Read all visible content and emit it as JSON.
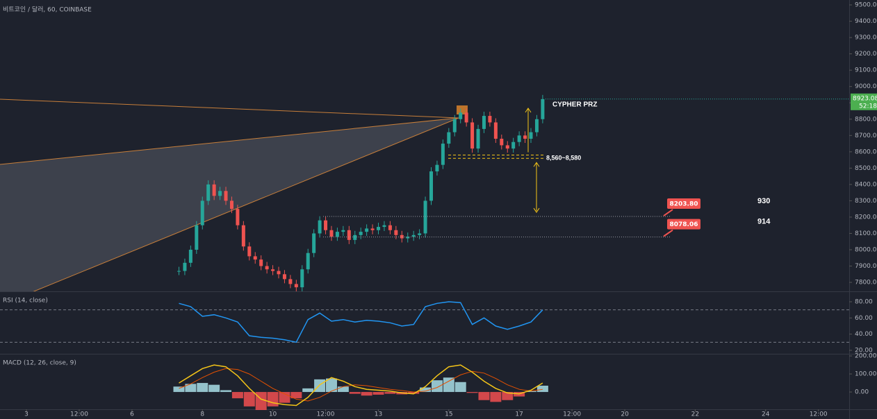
{
  "chart_data": [
    {
      "type": "candlestick",
      "title": "비트코인 / 달러, 60, COINBASE",
      "x": [
        104,
        108,
        112,
        116,
        120,
        124,
        128,
        132,
        136,
        140,
        144,
        148,
        152,
        156,
        160,
        164,
        168,
        172,
        176,
        180,
        184,
        188,
        192,
        196,
        200,
        204,
        208,
        212,
        216,
        220,
        224,
        228,
        232,
        236,
        240,
        244,
        248,
        252,
        256,
        260,
        264,
        268,
        272,
        276,
        280,
        284,
        288,
        292,
        296,
        300,
        304,
        308,
        312,
        316,
        320,
        324,
        328,
        332,
        336,
        340,
        344,
        348,
        352
      ],
      "close": [
        7870,
        7920,
        8000,
        8150,
        8300,
        8400,
        8330,
        8360,
        8300,
        8250,
        8150,
        8020,
        7960,
        7940,
        7900,
        7880,
        7870,
        7850,
        7820,
        7790,
        7770,
        7880,
        7980,
        8100,
        8180,
        8120,
        8080,
        8110,
        8120,
        8060,
        8090,
        8110,
        8130,
        8120,
        8140,
        8150,
        8120,
        8090,
        8070,
        8080,
        8090,
        8100,
        8300,
        8480,
        8520,
        8650,
        8720,
        8800,
        8840,
        8780,
        8620,
        8740,
        8820,
        8780,
        8680,
        8640,
        8620,
        8660,
        8700,
        8680,
        8720,
        8800,
        8923
      ],
      "up_color": "#26a69a",
      "down_color": "#ef5350",
      "xlim": [
        -18,
        561
      ],
      "ylim": [
        7745,
        9530
      ],
      "yticks": [
        {
          "value": 7800,
          "label": "7800.00"
        },
        {
          "value": 7900,
          "label": "7900.00"
        },
        {
          "value": 8000,
          "label": "8000.00"
        },
        {
          "value": 8100,
          "label": "8100.00"
        },
        {
          "value": 8200,
          "label": "8200.00"
        },
        {
          "value": 8300,
          "label": "8300.00"
        },
        {
          "value": 8400,
          "label": "8400.00"
        },
        {
          "value": 8500,
          "label": "8500.00"
        },
        {
          "value": 8600,
          "label": "8600.00"
        },
        {
          "value": 8700,
          "label": "8700.00"
        },
        {
          "value": 8800,
          "label": "8800.00"
        },
        {
          "value": 8900,
          "label": "8900.00"
        },
        {
          "value": 9000,
          "label": "9000.00"
        },
        {
          "value": 9100,
          "label": "9100.00"
        },
        {
          "value": 9200,
          "label": "9200.00"
        },
        {
          "value": 9300,
          "label": "9300.00"
        },
        {
          "value": 9400,
          "label": "9400.00"
        },
        {
          "value": 9500,
          "label": "9500.00"
        }
      ],
      "last_price": {
        "value": 8923.08,
        "label": "8923.08"
      },
      "countdown": "52:18",
      "annotation": "CYPHER PRZ",
      "zone": {
        "low": 8560,
        "high": 8580,
        "label": "8,560~8,580"
      },
      "levels": [
        {
          "value": 8203.8,
          "label": "8203.80",
          "note": "930"
        },
        {
          "value": 8078.06,
          "label": "8078.06",
          "note": "914"
        }
      ]
    },
    {
      "type": "line",
      "title": "RSI (14, close)",
      "x": [
        104,
        112,
        120,
        128,
        136,
        144,
        152,
        160,
        168,
        176,
        184,
        192,
        200,
        208,
        216,
        224,
        232,
        240,
        248,
        256,
        264,
        272,
        280,
        288,
        296,
        304,
        312,
        320,
        328,
        336,
        344,
        352
      ],
      "values": [
        78,
        74,
        62,
        64,
        60,
        55,
        38,
        36,
        35,
        33,
        30,
        58,
        66,
        56,
        58,
        55,
        57,
        56,
        54,
        50,
        52,
        74,
        78,
        80,
        79,
        52,
        60,
        50,
        46,
        50,
        55,
        70
      ],
      "color": "#2196f3",
      "levels": [
        70,
        30
      ],
      "xlim": [
        -18,
        561
      ],
      "ylim": [
        15.7,
        92
      ],
      "yticks": [
        {
          "value": 20,
          "label": "20.00"
        },
        {
          "value": 40,
          "label": "40.00"
        },
        {
          "value": 60,
          "label": "60.00"
        },
        {
          "value": 80,
          "label": "80.00"
        }
      ]
    },
    {
      "type": "macd",
      "title": "MACD (12, 26, close, 9)",
      "x": [
        104,
        112,
        120,
        128,
        136,
        144,
        152,
        160,
        168,
        176,
        184,
        192,
        200,
        208,
        216,
        224,
        232,
        240,
        248,
        256,
        264,
        272,
        280,
        288,
        296,
        304,
        312,
        320,
        328,
        336,
        344,
        352
      ],
      "macd": [
        50,
        90,
        130,
        150,
        140,
        90,
        20,
        -40,
        -60,
        -70,
        -75,
        -30,
        40,
        80,
        60,
        30,
        15,
        10,
        5,
        -5,
        -10,
        30,
        90,
        140,
        150,
        110,
        60,
        20,
        -5,
        -10,
        10,
        50
      ],
      "signal": [
        20,
        45,
        80,
        110,
        130,
        125,
        100,
        60,
        20,
        -10,
        -40,
        -50,
        -30,
        5,
        30,
        40,
        35,
        25,
        15,
        8,
        0,
        5,
        25,
        60,
        95,
        115,
        105,
        75,
        40,
        15,
        5,
        15
      ],
      "histogram": [
        30,
        45,
        50,
        40,
        10,
        -35,
        -80,
        -100,
        -80,
        -60,
        -35,
        20,
        70,
        75,
        30,
        -10,
        -20,
        -15,
        -10,
        -13,
        -10,
        25,
        65,
        80,
        55,
        -5,
        -45,
        -55,
        -45,
        -25,
        5,
        35
      ],
      "macd_color": "#f5c518",
      "signal_color": "#e65100",
      "hist_up_color": "#b2ebf2",
      "hist_down_color": "#ff5252",
      "xlim": [
        -18,
        561
      ],
      "ylim": [
        -96,
        208
      ],
      "yticks": [
        {
          "value": 0,
          "label": "0.00"
        },
        {
          "value": 100,
          "label": "100.00"
        },
        {
          "value": 200,
          "label": "200.00"
        }
      ],
      "xticks": [
        {
          "value": 0,
          "label": "3"
        },
        {
          "value": 36,
          "label": "12:00"
        },
        {
          "value": 72,
          "label": "6"
        },
        {
          "value": 120,
          "label": "8"
        },
        {
          "value": 168,
          "label": "10"
        },
        {
          "value": 204,
          "label": "12:00"
        },
        {
          "value": 240,
          "label": "13"
        },
        {
          "value": 288,
          "label": "15"
        },
        {
          "value": 336,
          "label": "17"
        },
        {
          "value": 372,
          "label": "12:00"
        },
        {
          "value": 408,
          "label": "20"
        },
        {
          "value": 456,
          "label": "22"
        },
        {
          "value": 504,
          "label": "24"
        },
        {
          "value": 540,
          "label": "12:00"
        }
      ]
    }
  ]
}
